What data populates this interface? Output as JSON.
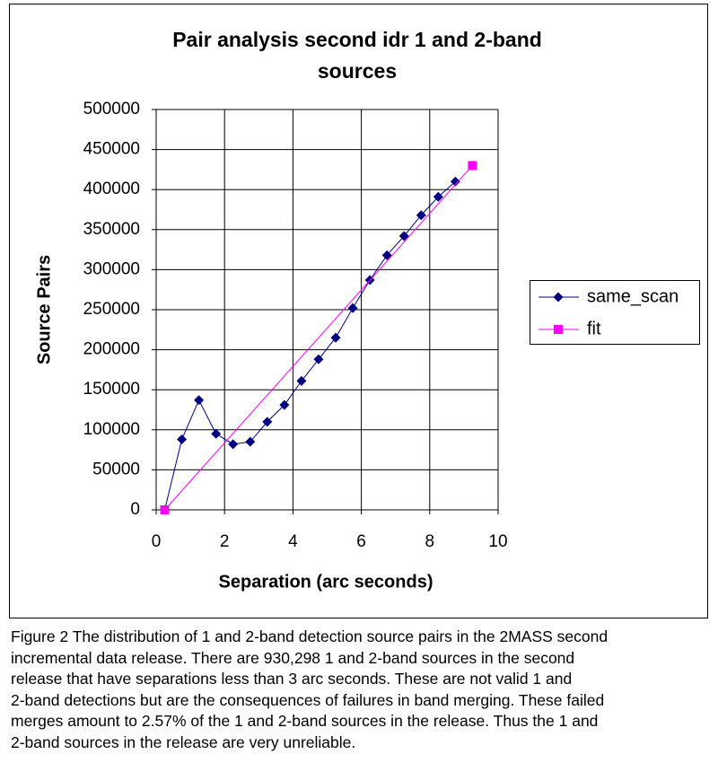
{
  "chart_data": {
    "type": "line",
    "title": [
      "Pair analysis second idr 1 and 2-band",
      "sources"
    ],
    "x_label": "Separation (arc seconds)",
    "y_label": "Source Pairs",
    "xlim": [
      0,
      10
    ],
    "xticks": [
      0,
      2,
      4,
      6,
      8,
      10
    ],
    "ylim": [
      0,
      500000
    ],
    "yticks": [
      0,
      50000,
      100000,
      150000,
      200000,
      250000,
      300000,
      350000,
      400000,
      450000,
      500000
    ],
    "grid": true,
    "legend": "right",
    "series": [
      {
        "name": "same_scan",
        "color": "#000080",
        "marker": "diamond",
        "x": [
          0.25,
          0.75,
          1.25,
          1.75,
          2.25,
          2.75,
          3.25,
          3.75,
          4.25,
          4.75,
          5.25,
          5.75,
          6.25,
          6.75,
          7.25,
          7.75,
          8.25,
          8.75
        ],
        "values": [
          0,
          88000,
          137000,
          95000,
          82000,
          85000,
          110000,
          131000,
          161000,
          188000,
          215000,
          252000,
          287000,
          318000,
          342000,
          368000,
          391000,
          410000
        ]
      },
      {
        "name": "fit",
        "color": "#ff00ff",
        "marker": "square",
        "x": [
          0.25,
          9.25
        ],
        "values": [
          0,
          430000
        ]
      }
    ]
  },
  "caption": [
    "Figure 2  The distribution of 1 and 2-band detection source pairs in the 2MASS second",
    "incremental data release.  There are 930,298 1 and 2-band sources in the second",
    "release that have separations less than 3 arc seconds.   These are not valid 1 and",
    "2-band detections but are the consequences of failures in band merging.  These failed",
    "merges amount to 2.57% of the 1 and 2-band sources in the release.  Thus the 1 and",
    "2-band sources in the release are very unreliable."
  ]
}
